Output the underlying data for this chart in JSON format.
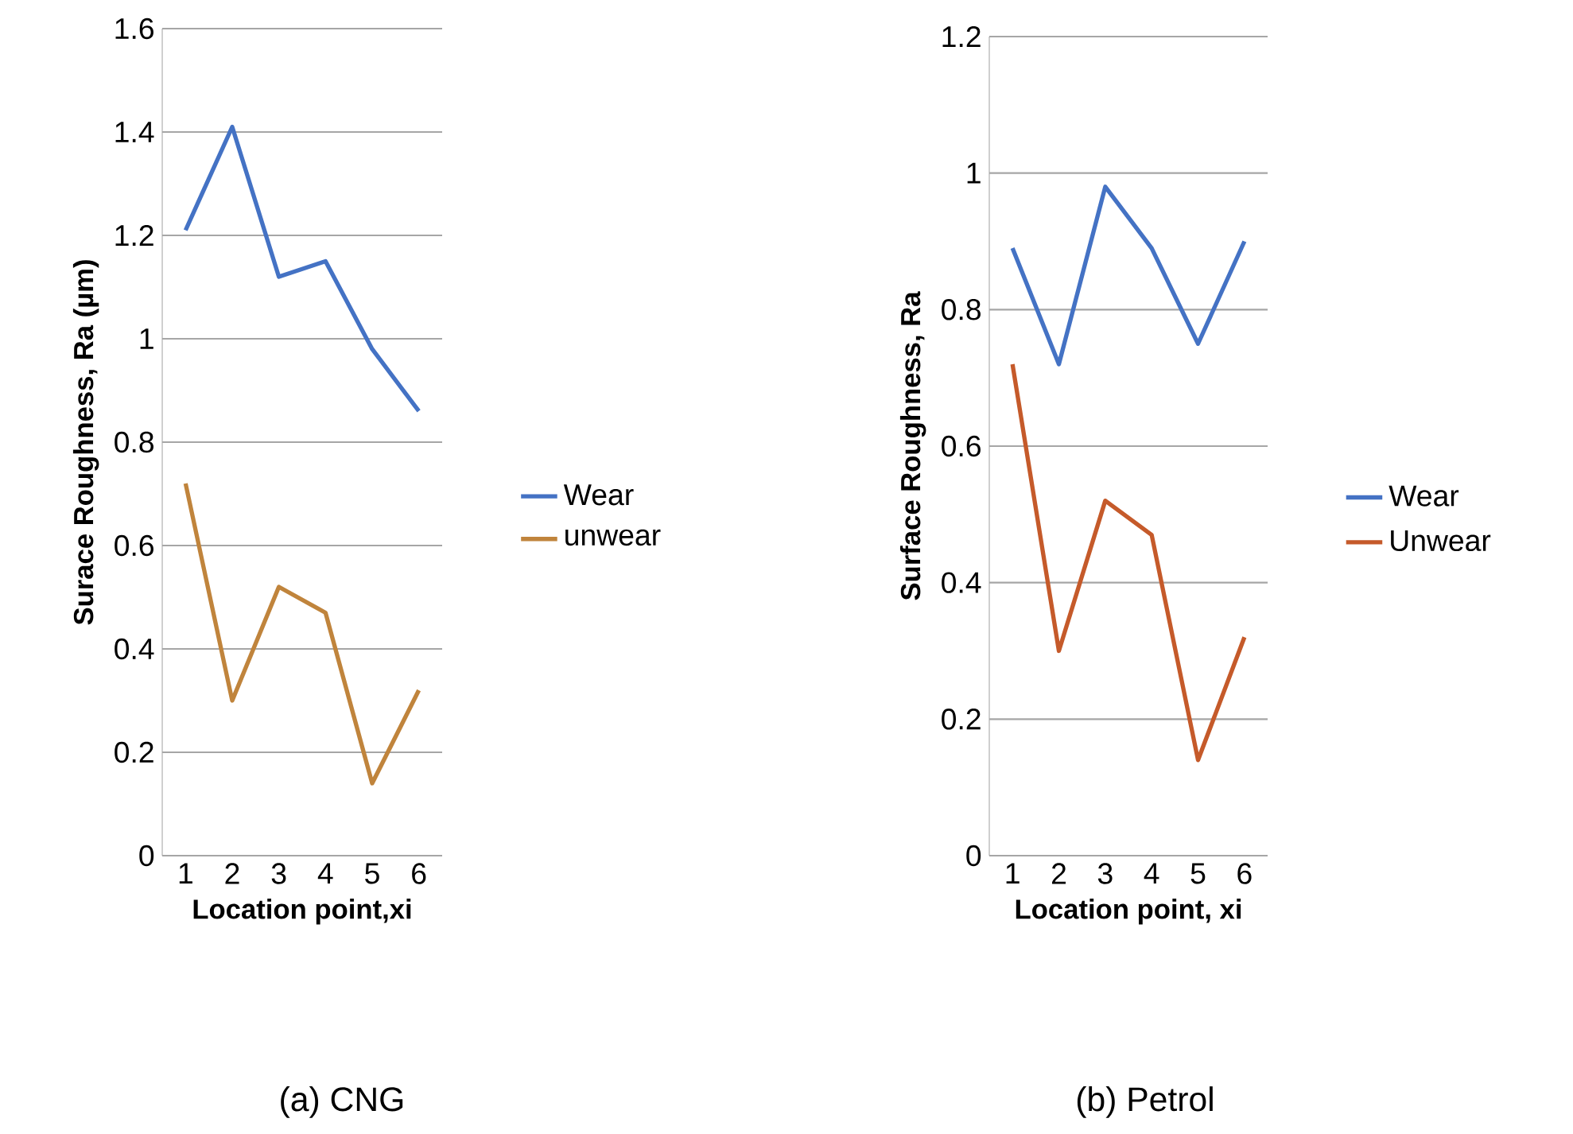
{
  "chart_data": [
    {
      "type": "line",
      "ylabel": "Surace Roughness, Ra (µm)",
      "xlabel": "Location point,xi",
      "annotations": [
        "(a) CNG"
      ],
      "categories": [
        "1",
        "2",
        "3",
        "4",
        "5",
        "6"
      ],
      "series": [
        {
          "name": "Wear",
          "color": "#4472c4",
          "values": [
            1.21,
            1.41,
            1.12,
            1.15,
            0.98,
            0.86
          ]
        },
        {
          "name": "unwear",
          "color": "#c0843c",
          "values": [
            0.72,
            0.3,
            0.52,
            0.47,
            0.14,
            0.32
          ]
        }
      ],
      "ylim": [
        0,
        1.6
      ],
      "yticks": [
        0,
        0.2,
        0.4,
        0.6,
        0.8,
        1,
        1.2,
        1.4,
        1.6
      ],
      "grid": "y",
      "legend": "right"
    },
    {
      "type": "line",
      "ylabel": "Surface Roughness, Ra",
      "xlabel": "Location point, xi",
      "annotations": [
        "(b) Petrol"
      ],
      "categories": [
        "1",
        "2",
        "3",
        "4",
        "5",
        "6"
      ],
      "series": [
        {
          "name": "Wear",
          "color": "#4472c4",
          "values": [
            0.89,
            0.72,
            0.98,
            0.89,
            0.75,
            0.9
          ]
        },
        {
          "name": "Unwear",
          "color": "#c55a2a",
          "values": [
            0.72,
            0.3,
            0.52,
            0.47,
            0.14,
            0.32
          ]
        }
      ],
      "ylim": [
        0,
        1.2
      ],
      "yticks": [
        0,
        0.2,
        0.4,
        0.6,
        0.8,
        1,
        1.2
      ],
      "grid": "y",
      "legend": "right"
    }
  ]
}
